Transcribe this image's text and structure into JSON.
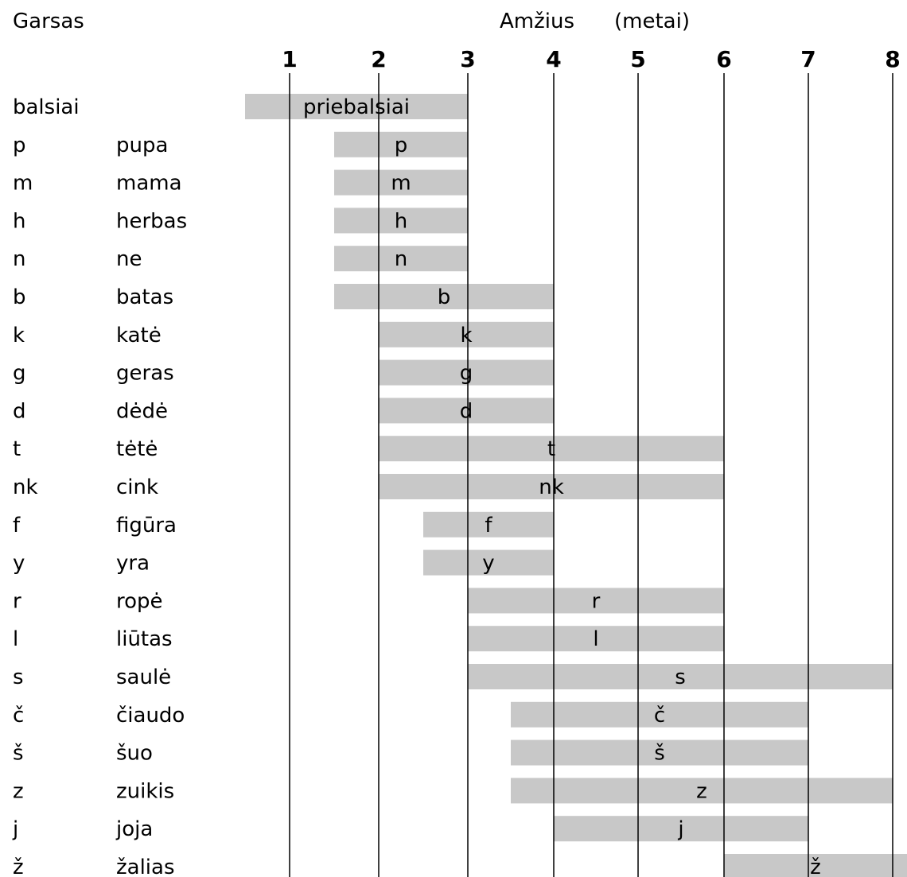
{
  "header": {
    "col1": "Garsas",
    "axis_title": "Amžius",
    "axis_unit": "(metai)"
  },
  "chart_data": {
    "type": "bar",
    "orientation": "horizontal-range",
    "x_ticks": [
      1,
      2,
      3,
      4,
      5,
      6,
      7,
      8
    ],
    "xlim": [
      1,
      8
    ],
    "grid": true,
    "bar_color": "#c8c8c8",
    "rows": [
      {
        "sound": "balsiai",
        "word": "",
        "label": "priebalsiai",
        "start": 0.5,
        "end": 3
      },
      {
        "sound": "p",
        "word": "pupa",
        "label": "p",
        "start": 1.5,
        "end": 3
      },
      {
        "sound": "m",
        "word": "mama",
        "label": "m",
        "start": 1.5,
        "end": 3
      },
      {
        "sound": "h",
        "word": "herbas",
        "label": "h",
        "start": 1.5,
        "end": 3
      },
      {
        "sound": "n",
        "word": "ne",
        "label": "n",
        "start": 1.5,
        "end": 3
      },
      {
        "sound": "b",
        "word": "batas",
        "label": "b",
        "start": 1.5,
        "end": 4
      },
      {
        "sound": "k",
        "word": "katė",
        "label": "k",
        "start": 2,
        "end": 4
      },
      {
        "sound": "g",
        "word": "geras",
        "label": "g",
        "start": 2,
        "end": 4
      },
      {
        "sound": "d",
        "word": "dėdė",
        "label": "d",
        "start": 2,
        "end": 4
      },
      {
        "sound": "t",
        "word": "tėtė",
        "label": "t",
        "start": 2,
        "end": 6
      },
      {
        "sound": "nk",
        "word": "cink",
        "label": "nk",
        "start": 2,
        "end": 6
      },
      {
        "sound": "f",
        "word": "figūra",
        "label": "f",
        "start": 2.5,
        "end": 4
      },
      {
        "sound": "y",
        "word": "yra",
        "label": "y",
        "start": 2.5,
        "end": 4
      },
      {
        "sound": "r",
        "word": "ropė",
        "label": "r",
        "start": 3,
        "end": 6
      },
      {
        "sound": "l",
        "word": "liūtas",
        "label": "l",
        "start": 3,
        "end": 6
      },
      {
        "sound": "s",
        "word": "saulė",
        "label": "s",
        "start": 3,
        "end": 8
      },
      {
        "sound": "č",
        "word": "čiaudo",
        "label": "č",
        "start": 3.5,
        "end": 7
      },
      {
        "sound": "š",
        "word": "šuo",
        "label": "š",
        "start": 3.5,
        "end": 7
      },
      {
        "sound": "z",
        "word": "zuikis",
        "label": "z",
        "start": 3.5,
        "end": 8
      },
      {
        "sound": "j",
        "word": "joja",
        "label": "j",
        "start": 4,
        "end": 7
      },
      {
        "sound": "ž",
        "word": "žalias",
        "label": "ž",
        "start": 6,
        "end": 8.2
      }
    ]
  }
}
